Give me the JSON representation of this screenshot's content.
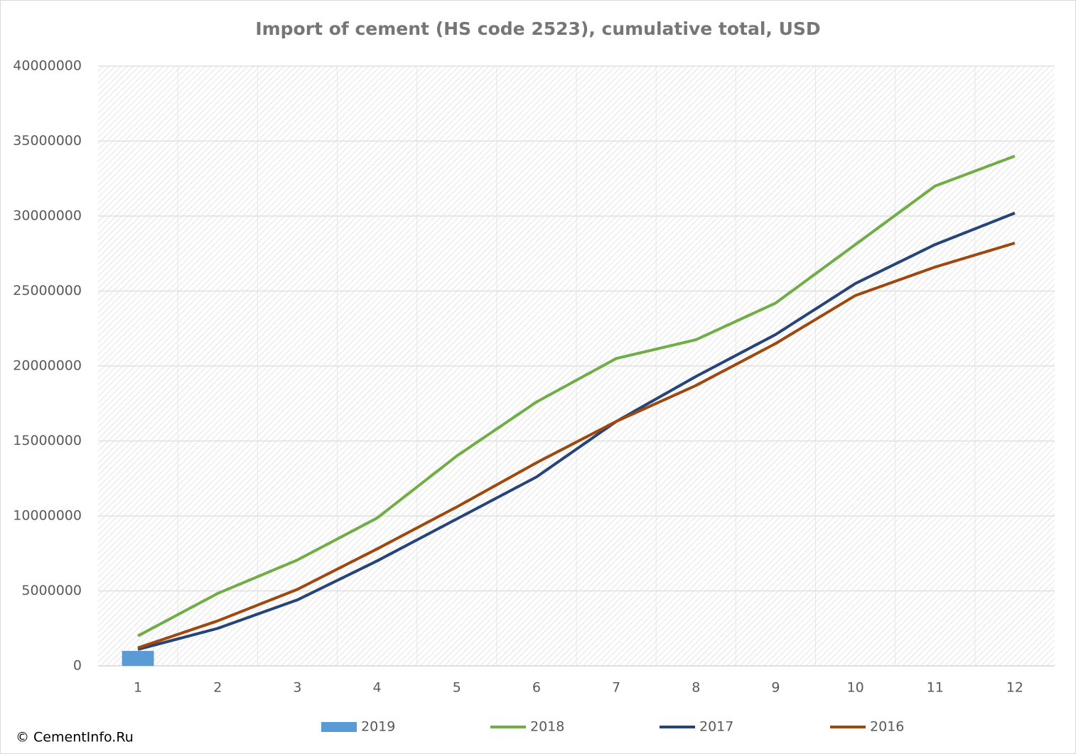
{
  "chart_data": {
    "type": "line",
    "title": "Import of cement (HS code 2523), cumulative total, USD",
    "source": "© CementInfo.Ru",
    "categories": [
      "1",
      "2",
      "3",
      "4",
      "5",
      "6",
      "7",
      "8",
      "9",
      "10",
      "11",
      "12"
    ],
    "series": [
      {
        "name": "2019",
        "type": "bar",
        "color": "#5b9bd5",
        "values": [
          1000000,
          null,
          null,
          null,
          null,
          null,
          null,
          null,
          null,
          null,
          null,
          null
        ]
      },
      {
        "name": "2018",
        "color": "#70ad47",
        "values": [
          2000000,
          4830000,
          7060000,
          9860000,
          14000000,
          17600000,
          20500000,
          21750000,
          24200000,
          28100000,
          32000000,
          34000000
        ]
      },
      {
        "name": "2017",
        "color": "#264478",
        "values": [
          1100000,
          2500000,
          4400000,
          7000000,
          9800000,
          12600000,
          16300000,
          19300000,
          22100000,
          25500000,
          28100000,
          30200000
        ]
      },
      {
        "name": "2016",
        "color": "#9e480e",
        "values": [
          1200000,
          3000000,
          5100000,
          7800000,
          10600000,
          13550000,
          16300000,
          18700000,
          21500000,
          24700000,
          26600000,
          28200000
        ]
      }
    ],
    "ylim": [
      0,
      40000000
    ],
    "yticks": [
      0,
      5000000,
      10000000,
      15000000,
      20000000,
      25000000,
      30000000,
      35000000,
      40000000
    ],
    "grid": true,
    "legend": "bottom"
  }
}
